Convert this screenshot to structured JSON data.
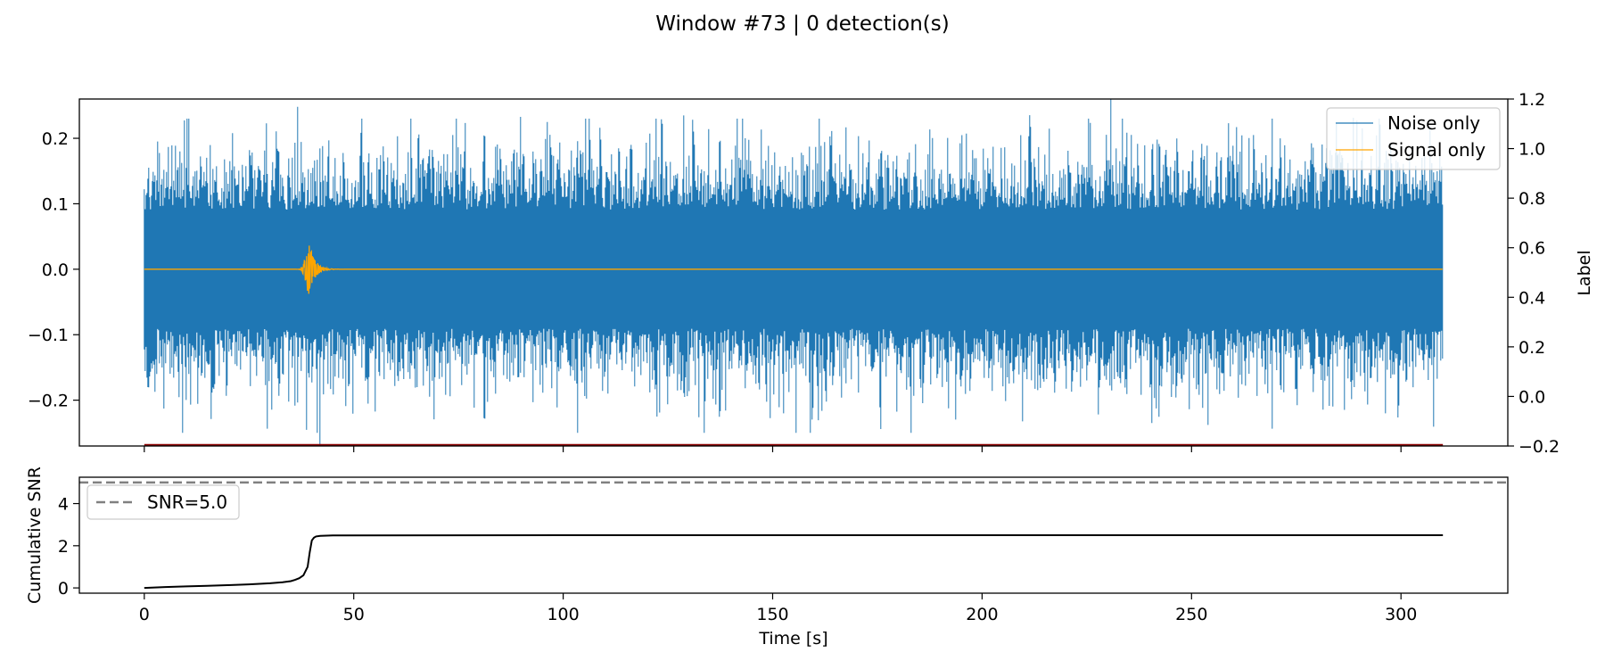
{
  "figure": {
    "title": "Window #73 | 0 detection(s)"
  },
  "colors": {
    "noise": "#1f77b4",
    "signal": "#ffa500",
    "label": "#8b0000",
    "snr": "#000000",
    "threshold": "#808080"
  },
  "chart_data": [
    {
      "type": "line",
      "panel": "top",
      "x": {
        "label": "",
        "lim": [
          -15.5,
          325.5
        ],
        "ticks": [
          0,
          50,
          100,
          150,
          200,
          250,
          300
        ]
      },
      "y_left": {
        "label": "",
        "lim": [
          -0.27,
          0.26
        ],
        "ticks": [
          -0.2,
          -0.1,
          0.0,
          0.1,
          0.2
        ],
        "tick_labels": [
          "−0.2",
          "−0.1",
          "0.0",
          "0.1",
          "0.2"
        ]
      },
      "y_right": {
        "label": "Label",
        "lim": [
          -0.2,
          1.2
        ],
        "ticks": [
          -0.2,
          0.0,
          0.2,
          0.4,
          0.6,
          0.8,
          1.0,
          1.2
        ],
        "tick_labels": [
          "−0.2",
          "0.0",
          "0.2",
          "0.4",
          "0.6",
          "0.8",
          "1.0",
          "1.2"
        ]
      },
      "legend": {
        "placement": "top-right",
        "entries": [
          "Noise only",
          "Signal only"
        ]
      },
      "series": [
        {
          "name": "Noise only",
          "x_range": [
            0,
            310
          ],
          "envelope_typical": 0.13,
          "extremes": [
            0.23,
            -0.25
          ]
        },
        {
          "name": "Signal only",
          "x_range": [
            0,
            310
          ],
          "baseline": 0.0,
          "burst_center": 39.5,
          "burst_peak": 0.045,
          "burst_min": -0.045
        },
        {
          "name": "",
          "axis": "right",
          "x_range": [
            0,
            310
          ],
          "values": [
            -0.2
          ]
        }
      ]
    },
    {
      "type": "line",
      "panel": "bottom",
      "x": {
        "label": "Time [s]",
        "lim": [
          -15.5,
          325.5
        ],
        "ticks": [
          0,
          50,
          100,
          150,
          200,
          250,
          300
        ],
        "tick_labels": [
          "0",
          "50",
          "100",
          "150",
          "200",
          "250",
          "300"
        ]
      },
      "y": {
        "label": "Cumulative SNR",
        "lim": [
          -0.25,
          5.25
        ],
        "ticks": [
          0,
          2,
          4
        ],
        "tick_labels": [
          "0",
          "2",
          "4"
        ]
      },
      "legend": {
        "placement": "top-left",
        "entries": [
          "SNR=5.0"
        ]
      },
      "threshold": 5.0,
      "series": [
        {
          "name": "",
          "x": [
            0,
            5,
            10,
            15,
            20,
            25,
            30,
            33,
            35,
            36,
            37,
            38,
            39,
            39.5,
            40,
            40.5,
            41,
            42,
            45,
            100,
            200,
            310
          ],
          "y": [
            0.0,
            0.04,
            0.07,
            0.1,
            0.13,
            0.17,
            0.22,
            0.27,
            0.32,
            0.38,
            0.46,
            0.6,
            1.0,
            1.7,
            2.25,
            2.38,
            2.44,
            2.47,
            2.49,
            2.5,
            2.5,
            2.5
          ]
        }
      ]
    }
  ]
}
